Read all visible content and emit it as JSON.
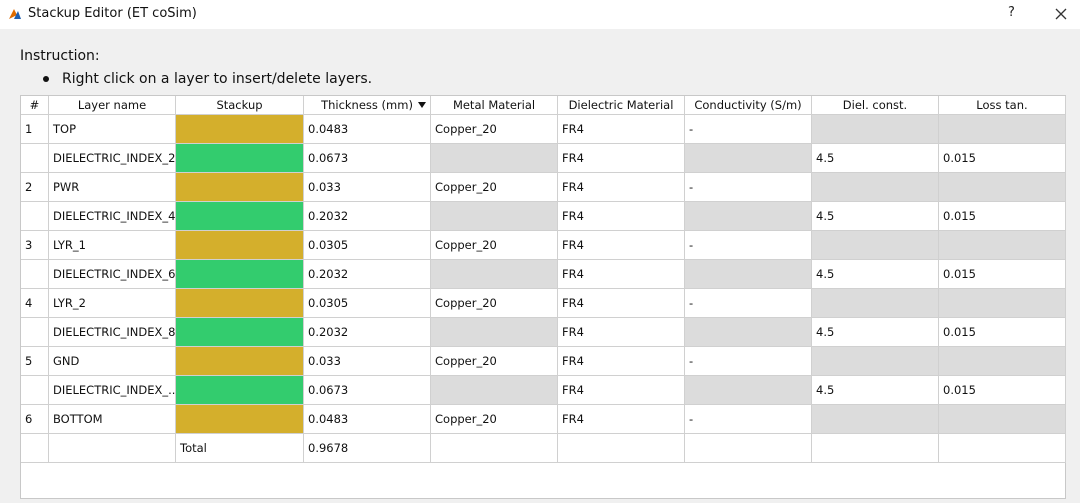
{
  "window": {
    "title": "Stackup Editor (ET coSim)",
    "help": "?"
  },
  "instruction": {
    "heading": "Instruction:",
    "bullet": "Right click on a layer to insert/delete layers."
  },
  "table": {
    "headers": [
      "#",
      "Layer name",
      "Stackup",
      "Thickness (mm)",
      "Metal Material",
      "Dielectric Material",
      "Conductivity (S/m)",
      "Diel. const.",
      "Loss tan."
    ],
    "sorted_column": 3,
    "rows": [
      {
        "cells": [
          "1",
          "TOP",
          null,
          "0.0483",
          "Copper_20",
          "FR4",
          "-",
          null,
          null
        ],
        "stackup_color": "#d4af2c",
        "gray": [
          7,
          8
        ]
      },
      {
        "cells": [
          null,
          "DIELECTRIC_INDEX_2",
          null,
          "0.0673",
          null,
          "FR4",
          null,
          "4.5",
          "0.015"
        ],
        "stackup_color": "#33cc6e",
        "gray": [
          4,
          6
        ]
      },
      {
        "cells": [
          "2",
          "PWR",
          null,
          "0.033",
          "Copper_20",
          "FR4",
          "-",
          null,
          null
        ],
        "stackup_color": "#d4af2c",
        "gray": [
          7,
          8
        ]
      },
      {
        "cells": [
          null,
          "DIELECTRIC_INDEX_4",
          null,
          "0.2032",
          null,
          "FR4",
          null,
          "4.5",
          "0.015"
        ],
        "stackup_color": "#33cc6e",
        "gray": [
          4,
          6
        ]
      },
      {
        "cells": [
          "3",
          "LYR_1",
          null,
          "0.0305",
          "Copper_20",
          "FR4",
          "-",
          null,
          null
        ],
        "stackup_color": "#d4af2c",
        "gray": [
          7,
          8
        ]
      },
      {
        "cells": [
          null,
          "DIELECTRIC_INDEX_6",
          null,
          "0.2032",
          null,
          "FR4",
          null,
          "4.5",
          "0.015"
        ],
        "stackup_color": "#33cc6e",
        "gray": [
          4,
          6
        ]
      },
      {
        "cells": [
          "4",
          "LYR_2",
          null,
          "0.0305",
          "Copper_20",
          "FR4",
          "-",
          null,
          null
        ],
        "stackup_color": "#d4af2c",
        "gray": [
          7,
          8
        ]
      },
      {
        "cells": [
          null,
          "DIELECTRIC_INDEX_8",
          null,
          "0.2032",
          null,
          "FR4",
          null,
          "4.5",
          "0.015"
        ],
        "stackup_color": "#33cc6e",
        "gray": [
          4,
          6
        ]
      },
      {
        "cells": [
          "5",
          "GND",
          null,
          "0.033",
          "Copper_20",
          "FR4",
          "-",
          null,
          null
        ],
        "stackup_color": "#d4af2c",
        "gray": [
          7,
          8
        ]
      },
      {
        "cells": [
          null,
          "DIELECTRIC_INDEX_...",
          null,
          "0.0673",
          null,
          "FR4",
          null,
          "4.5",
          "0.015"
        ],
        "stackup_color": "#33cc6e",
        "gray": [
          4,
          6
        ]
      },
      {
        "cells": [
          "6",
          "BOTTOM",
          null,
          "0.0483",
          "Copper_20",
          "FR4",
          "-",
          null,
          null
        ],
        "stackup_color": "#d4af2c",
        "gray": [
          7,
          8
        ]
      },
      {
        "cells": [
          null,
          null,
          "Total",
          "0.9678",
          null,
          null,
          null,
          null,
          null
        ]
      }
    ]
  }
}
